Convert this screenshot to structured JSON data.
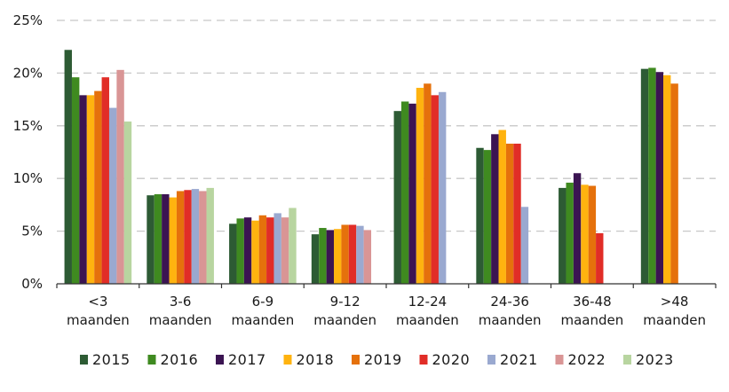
{
  "chart_data": {
    "type": "bar",
    "title": "",
    "xlabel": "",
    "ylabel": "",
    "ylim": [
      0,
      25
    ],
    "y_ticks": [
      "0%",
      "5%",
      "10%",
      "15%",
      "20%",
      "25%"
    ],
    "y_tick_values": [
      0,
      5,
      10,
      15,
      20,
      25
    ],
    "grid": true,
    "legend_position": "bottom",
    "categories": [
      {
        "line1": "<3",
        "line2": "maanden"
      },
      {
        "line1": "3-6",
        "line2": "maanden"
      },
      {
        "line1": "6-9",
        "line2": "maanden"
      },
      {
        "line1": "9-12",
        "line2": "maanden"
      },
      {
        "line1": "12-24",
        "line2": "maanden"
      },
      {
        "line1": "24-36",
        "line2": "maanden"
      },
      {
        "line1": "36-48",
        "line2": "maanden"
      },
      {
        "line1": ">48",
        "line2": "maanden"
      }
    ],
    "series": [
      {
        "name": "2015",
        "color": "#2d5b34",
        "values": [
          22.2,
          8.4,
          5.7,
          4.7,
          16.4,
          12.9,
          9.1,
          20.4
        ]
      },
      {
        "name": "2016",
        "color": "#3f8a20",
        "values": [
          19.6,
          8.5,
          6.2,
          5.3,
          17.3,
          12.7,
          9.6,
          20.5
        ]
      },
      {
        "name": "2017",
        "color": "#3b1452",
        "values": [
          17.9,
          8.5,
          6.3,
          5.1,
          17.1,
          14.2,
          10.5,
          20.1
        ]
      },
      {
        "name": "2018",
        "color": "#ffb30f",
        "values": [
          17.9,
          8.2,
          6.0,
          5.2,
          18.6,
          14.6,
          9.4,
          19.8
        ]
      },
      {
        "name": "2019",
        "color": "#e5710c",
        "values": [
          18.3,
          8.8,
          6.5,
          5.6,
          19.0,
          13.3,
          9.3,
          19.0
        ]
      },
      {
        "name": "2020",
        "color": "#e12d27",
        "values": [
          19.6,
          8.9,
          6.3,
          5.6,
          17.9,
          13.3,
          4.8,
          null
        ]
      },
      {
        "name": "2021",
        "color": "#9aa9d0",
        "values": [
          16.7,
          9.0,
          6.7,
          5.5,
          18.2,
          7.3,
          null,
          null
        ]
      },
      {
        "name": "2022",
        "color": "#d99595",
        "values": [
          20.3,
          8.8,
          6.3,
          5.1,
          null,
          null,
          null,
          null
        ]
      },
      {
        "name": "2023",
        "color": "#b8d5a0",
        "values": [
          15.4,
          9.1,
          7.2,
          null,
          null,
          null,
          null,
          null
        ]
      }
    ]
  }
}
